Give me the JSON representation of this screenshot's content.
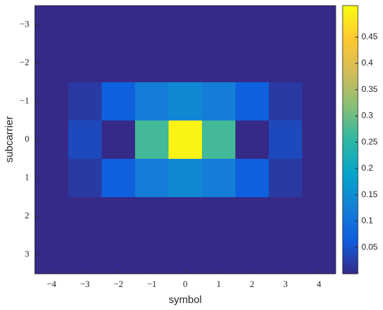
{
  "chart_data": {
    "type": "heatmap",
    "x_label": "symbol",
    "y_label": "subcarrier",
    "x": [
      -4,
      -3,
      -2,
      -1,
      0,
      1,
      2,
      3,
      4
    ],
    "y": [
      -3,
      -2,
      -1,
      0,
      1,
      2,
      3
    ],
    "values": [
      [
        0,
        0,
        0,
        0,
        0,
        0,
        0,
        0,
        0
      ],
      [
        0,
        0,
        0,
        0,
        0,
        0,
        0,
        0,
        0
      ],
      [
        0,
        0.02,
        0.07,
        0.12,
        0.14,
        0.12,
        0.07,
        0.02,
        0
      ],
      [
        0,
        0.04,
        0,
        0.27,
        0.5,
        0.27,
        0,
        0.04,
        0
      ],
      [
        0,
        0.02,
        0.07,
        0.12,
        0.14,
        0.12,
        0.07,
        0.02,
        0
      ],
      [
        0,
        0,
        0,
        0,
        0,
        0,
        0,
        0,
        0
      ],
      [
        0,
        0,
        0,
        0,
        0,
        0,
        0,
        0,
        0
      ]
    ],
    "xlim": [
      -4.5,
      4.5
    ],
    "xticks": [
      {
        "value": -4,
        "label": "−4"
      },
      {
        "value": -3,
        "label": "−3"
      },
      {
        "value": -2,
        "label": "−2"
      },
      {
        "value": -1,
        "label": "−1"
      },
      0,
      1,
      2,
      3,
      4
    ],
    "ylim": [
      -3.5,
      3.5
    ],
    "y_direction": "reverse",
    "yticks": [
      {
        "value": -3,
        "label": "−3"
      },
      {
        "value": -2,
        "label": "−2"
      },
      {
        "value": -1,
        "label": "−1"
      },
      0,
      1,
      2,
      3
    ],
    "clim": [
      0,
      0.51
    ],
    "cticks": [
      0.05,
      0.1,
      0.15,
      0.2,
      0.25,
      0.3,
      0.35,
      0.4,
      0.45
    ],
    "colormap": [
      "#352a87",
      "#0f5cdd",
      "#1481d6",
      "#06a4ca",
      "#2eb7a4",
      "#87bf77",
      "#d1bb59",
      "#fec832",
      "#f9fb0e"
    ]
  }
}
